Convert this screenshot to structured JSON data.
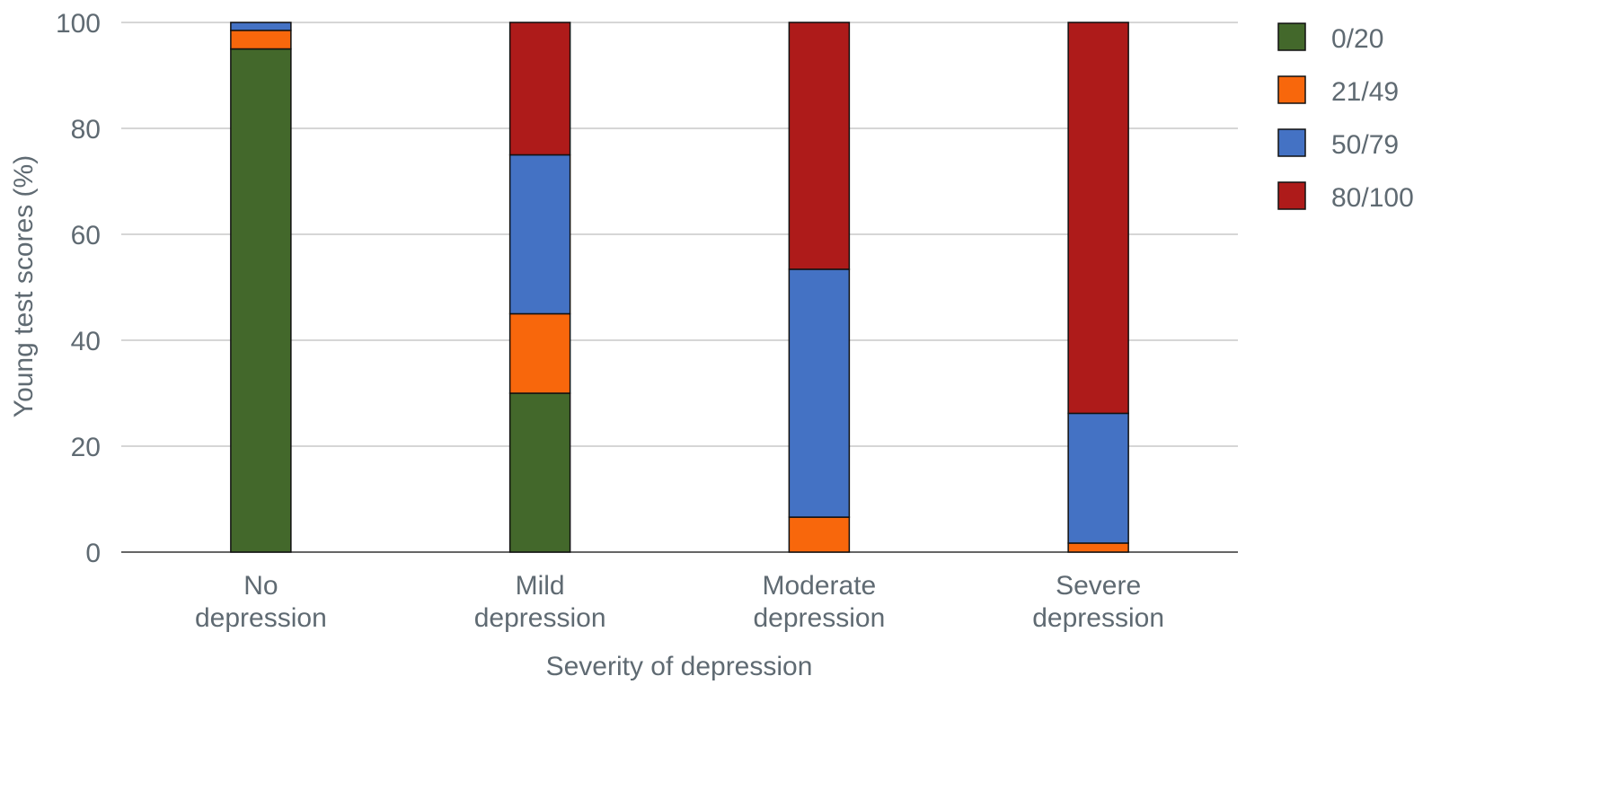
{
  "chart_data": {
    "type": "bar",
    "stacked": true,
    "title": "",
    "xlabel": "Severity of depression",
    "ylabel": "Young test scores (%)",
    "ylim": [
      0,
      100
    ],
    "yticks": [
      "0",
      "20",
      "40",
      "60",
      "80",
      "100"
    ],
    "grid": true,
    "legend_position": "right",
    "categories": [
      [
        "No",
        "depression"
      ],
      [
        "Mild",
        "depression"
      ],
      [
        "Moderate",
        "depression"
      ],
      [
        "Severe",
        "depression"
      ]
    ],
    "series": [
      {
        "name": "0/20",
        "color": "#43682b",
        "values": [
          95,
          30,
          0,
          0
        ]
      },
      {
        "name": "21/49",
        "color": "#f8670c",
        "values": [
          3.5,
          15,
          6.6,
          1.7
        ]
      },
      {
        "name": "50/79",
        "color": "#4472c4",
        "values": [
          1.5,
          30,
          46.8,
          24.5
        ]
      },
      {
        "name": "80/100",
        "color": "#ae1b1a",
        "values": [
          0,
          25,
          46.6,
          73.8
        ]
      }
    ]
  }
}
